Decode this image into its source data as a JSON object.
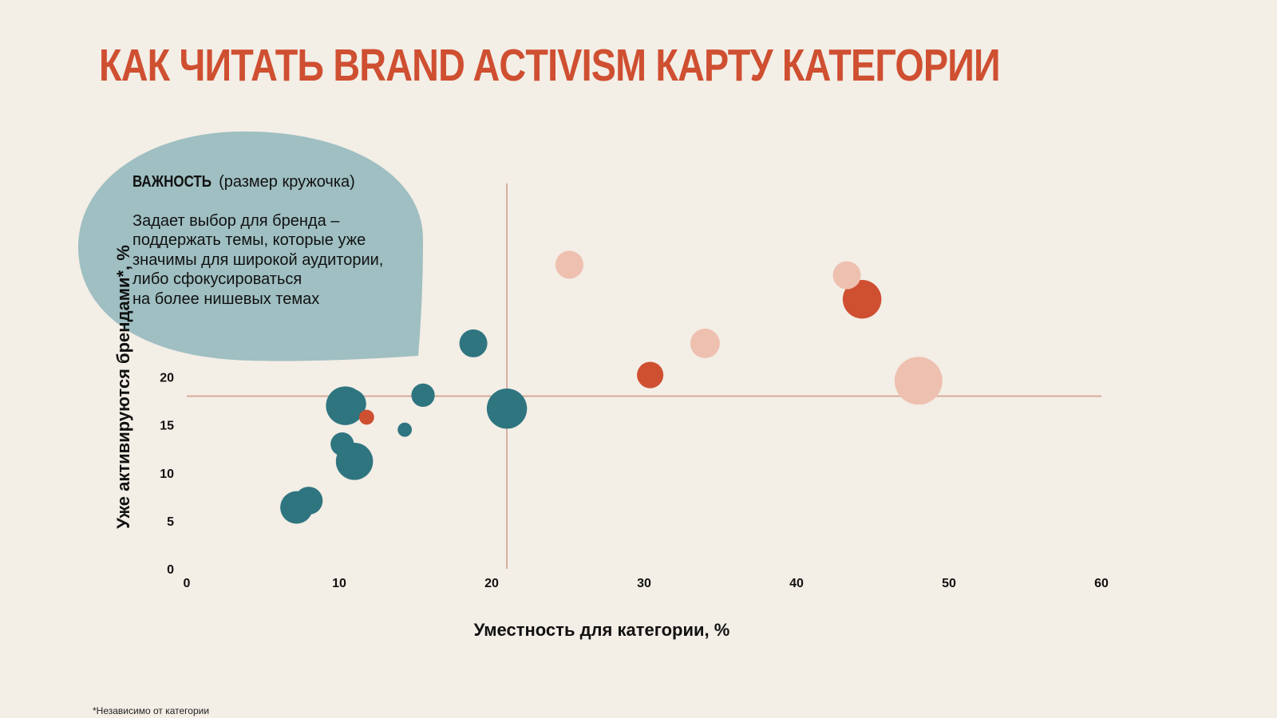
{
  "title": "КАК ЧИТАТЬ BRAND ACTIVISM КАРТУ КАТЕГОРИИ",
  "callout": {
    "heading_bold": "ВАЖНОСТЬ",
    "heading_rest": "(размер кружочка)",
    "body": "Задает выбор для бренда –\nподдержать темы, которые уже\nзначимы для широкой аудитории,\nлибо сфокусироваться\nна более нишевых темах"
  },
  "footnote": "*Независимо от категории",
  "colors": {
    "background": "#f3eee6",
    "accent": "#cf4f31",
    "teal": "#2f7580",
    "salmon": "#eec0b0",
    "callout": "#9fbfc2",
    "guide": "#d4a898"
  },
  "chart_data": {
    "type": "scatter",
    "title": "КАК ЧИТАТЬ BRAND ACTIVISM КАРТУ КАТЕГОРИИ",
    "xlabel": "Уместность для категории, %",
    "ylabel": "Уже активируются брендами*, %",
    "xlim": [
      0,
      60
    ],
    "ylim": [
      0,
      40
    ],
    "x_ticks": [
      0,
      10,
      20,
      30,
      40,
      50,
      60
    ],
    "y_ticks": [
      0,
      5,
      10,
      15,
      20
    ],
    "y_tick_labels": [
      "0",
      "5",
      "10",
      "15",
      "20"
    ],
    "grid": false,
    "reference_lines": {
      "x": 21,
      "y": 18
    },
    "size_meaning": "importance (bubble size)",
    "series": [
      {
        "name": "teal",
        "color": "#2f7580",
        "points": [
          {
            "x": 7.2,
            "y": 6.4,
            "size": 3
          },
          {
            "x": 8.0,
            "y": 7.1,
            "size": 2.4
          },
          {
            "x": 10.2,
            "y": 13.0,
            "size": 1.8
          },
          {
            "x": 11.0,
            "y": 11.2,
            "size": 3.6
          },
          {
            "x": 10.4,
            "y": 17.0,
            "size": 3.8
          },
          {
            "x": 10.8,
            "y": 17.2,
            "size": 2.6
          },
          {
            "x": 14.3,
            "y": 14.5,
            "size": 0.6
          },
          {
            "x": 15.5,
            "y": 18.1,
            "size": 1.8
          },
          {
            "x": 18.8,
            "y": 23.5,
            "size": 2.4
          },
          {
            "x": 21.0,
            "y": 16.7,
            "size": 4.0
          }
        ]
      },
      {
        "name": "red",
        "color": "#cf4f31",
        "points": [
          {
            "x": 11.8,
            "y": 15.8,
            "size": 0.7
          },
          {
            "x": 30.4,
            "y": 20.2,
            "size": 2.2
          },
          {
            "x": 44.3,
            "y": 28.1,
            "size": 3.8
          }
        ]
      },
      {
        "name": "salmon",
        "color": "#eec0b0",
        "points": [
          {
            "x": 25.1,
            "y": 31.7,
            "size": 2.4
          },
          {
            "x": 34.0,
            "y": 23.5,
            "size": 2.6
          },
          {
            "x": 43.3,
            "y": 30.6,
            "size": 2.4
          },
          {
            "x": 48.0,
            "y": 19.6,
            "size": 5.0
          }
        ]
      }
    ]
  }
}
